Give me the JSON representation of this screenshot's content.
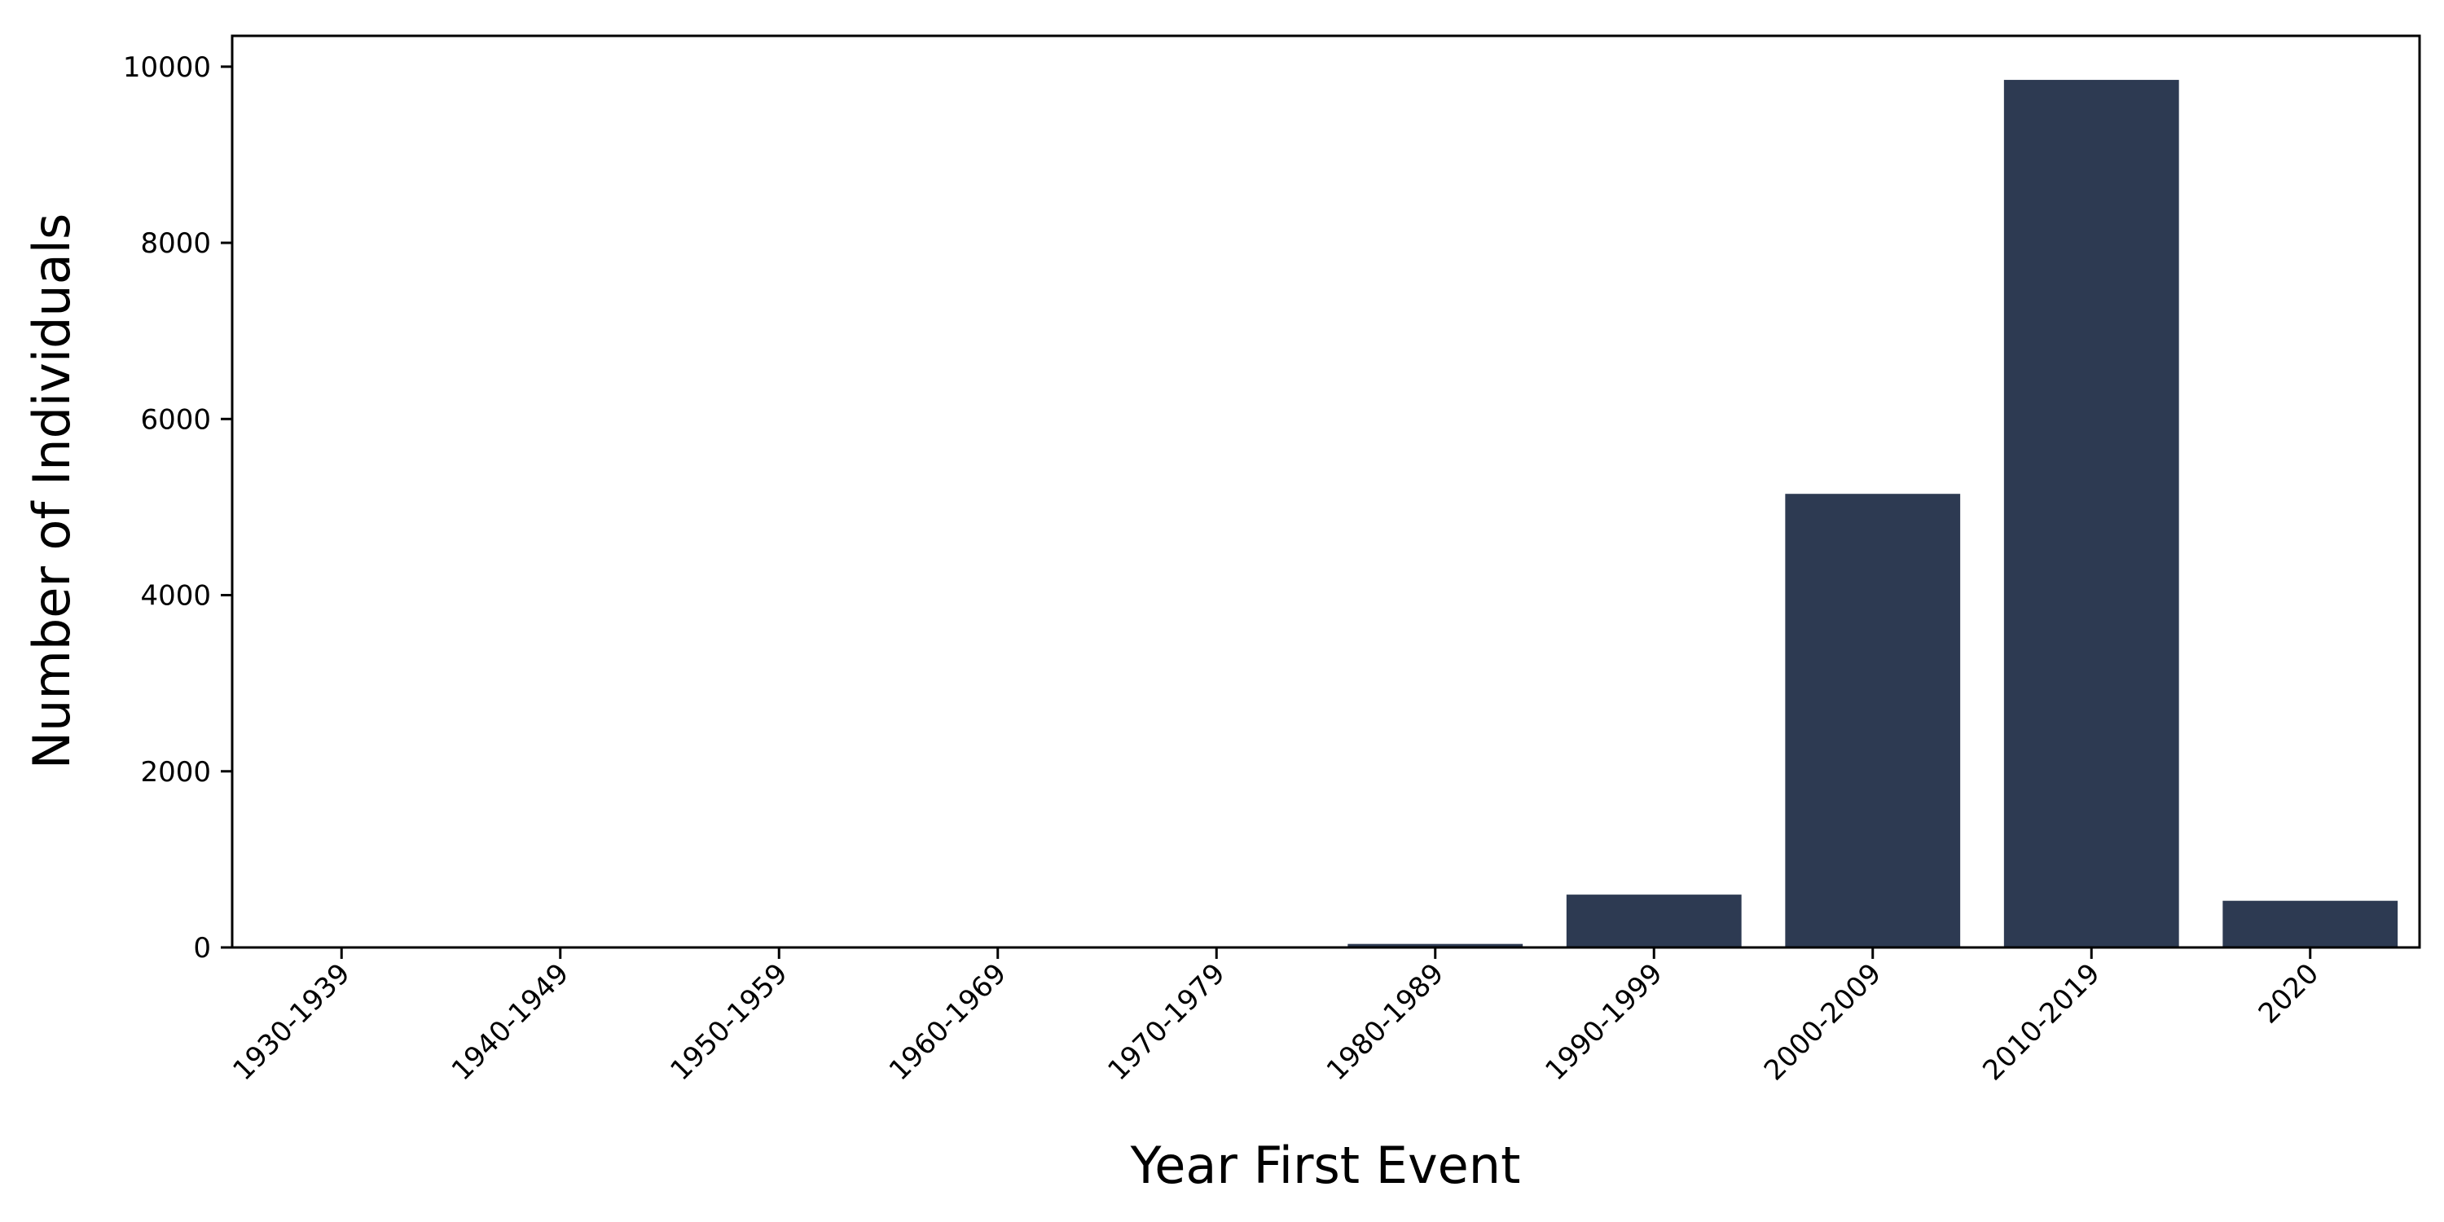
{
  "chart_data": {
    "type": "bar",
    "categories": [
      "1930-1939",
      "1940-1949",
      "1950-1959",
      "1960-1969",
      "1970-1979",
      "1980-1989",
      "1990-1999",
      "2000-2009",
      "2010-2019",
      "2020"
    ],
    "values": [
      1,
      2,
      1,
      3,
      5,
      40,
      600,
      5150,
      9850,
      530
    ],
    "title": "",
    "xlabel": "Year First Event",
    "ylabel": "Number of Individuals",
    "ylim": [
      0,
      10350
    ],
    "yticks": [
      0,
      2000,
      4000,
      6000,
      8000,
      10000
    ],
    "grid": false,
    "legend": "none",
    "bar_color": "#2d3a52",
    "axis_color": "#000000"
  }
}
